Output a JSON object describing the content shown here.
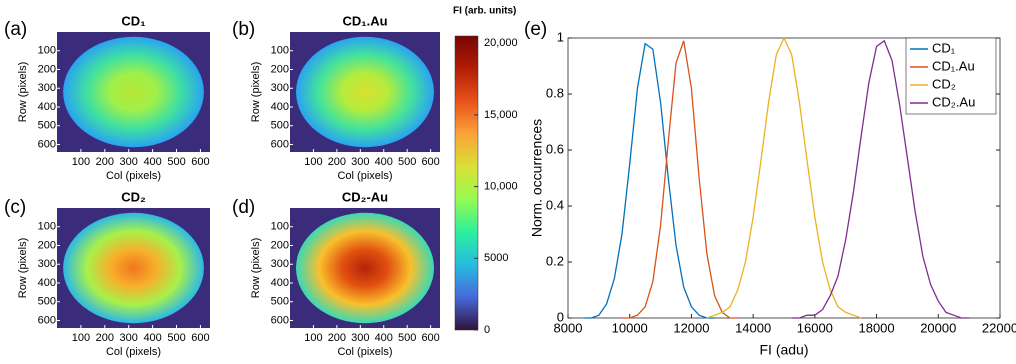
{
  "chart_data": [
    {
      "type": "image",
      "label": "(a)",
      "title": "CD₁",
      "xlabel": "Col (pixels)",
      "ylabel": "Row (pixels)",
      "xlim": [
        0,
        640
      ],
      "xticks": [
        100,
        200,
        300,
        400,
        500,
        600
      ],
      "ylim": [
        0,
        640
      ],
      "yticks": [
        100,
        200,
        300,
        400,
        500,
        600
      ],
      "colors": [
        "#b6e635",
        "#9ff04a",
        "#3fe0a2",
        "#29a3f2",
        "#3a2c7a"
      ]
    },
    {
      "type": "image",
      "label": "(b)",
      "title": "CD₁.Au",
      "xlabel": "Col (pixels)",
      "ylabel": "Row (pixels)",
      "xlim": [
        0,
        640
      ],
      "xticks": [
        100,
        200,
        300,
        400,
        500,
        600
      ],
      "ylim": [
        0,
        640
      ],
      "yticks": [
        100,
        200,
        300,
        400,
        500,
        600
      ],
      "colors": [
        "#d8e030",
        "#b4ec3c",
        "#45e39a",
        "#29a3f2",
        "#3a2c7a"
      ]
    },
    {
      "type": "image",
      "label": "(c)",
      "title": "CD₂",
      "xlabel": "Col (pixels)",
      "ylabel": "Row (pixels)",
      "xlim": [
        0,
        640
      ],
      "xticks": [
        100,
        200,
        300,
        400,
        500,
        600
      ],
      "ylim": [
        0,
        640
      ],
      "yticks": [
        100,
        200,
        300,
        400,
        500,
        600
      ],
      "colors": [
        "#f1761c",
        "#f7b02c",
        "#a8f04a",
        "#2cb9e6",
        "#3a2c7a"
      ]
    },
    {
      "type": "image",
      "label": "(d)",
      "title": "CD₂-Au",
      "xlabel": "Col (pixels)",
      "ylabel": "Row (pixels)",
      "xlim": [
        0,
        640
      ],
      "xticks": [
        100,
        200,
        300,
        400,
        500,
        600
      ],
      "ylim": [
        0,
        640
      ],
      "yticks": [
        100,
        200,
        300,
        400,
        500,
        600
      ],
      "colors": [
        "#b3230a",
        "#e2500f",
        "#f9c02d",
        "#3ad9b4",
        "#3a2c7a"
      ]
    },
    {
      "type": "colorbar",
      "title": "FI (arb. units)",
      "ylim": [
        0,
        20500
      ],
      "yticks": [
        0,
        5000,
        {
          "value": 10000,
          "label": "10,000"
        },
        {
          "value": 15000,
          "label": "15,000"
        },
        {
          "value": 20000,
          "label": "20,000"
        }
      ],
      "colors": [
        "#30123b",
        "#4669db",
        "#26bce1",
        "#2cf09c",
        "#95fb51",
        "#dae035",
        "#fba33a",
        "#e9531a",
        "#b11e04",
        "#7a0403"
      ]
    },
    {
      "type": "line",
      "label": "(e)",
      "xlabel": "FI (adu)",
      "ylabel": "Norm. occurrences",
      "xlim": [
        8000,
        22000
      ],
      "xticks": [
        8000,
        10000,
        12000,
        14000,
        16000,
        18000,
        20000,
        22000
      ],
      "ylim": [
        0,
        1
      ],
      "yticks": [
        0,
        0.2,
        0.4,
        0.6,
        0.8,
        1
      ],
      "legend": "upper right",
      "x": [
        8000,
        8250,
        8500,
        8750,
        9000,
        9250,
        9500,
        9750,
        10000,
        10250,
        10500,
        10750,
        11000,
        11250,
        11500,
        11750,
        12000,
        12250,
        12500,
        12750,
        13000,
        13250,
        13500,
        13750,
        14000,
        14250,
        14500,
        14750,
        15000,
        15250,
        15500,
        15750,
        16000,
        16250,
        16500,
        16750,
        17000,
        17250,
        17500,
        17750,
        18000,
        18250,
        18500,
        18750,
        19000,
        19250,
        19500,
        19750,
        20000,
        20250,
        20500,
        20750,
        21000
      ],
      "series": [
        {
          "name": "CD₁",
          "color": "#0072bd",
          "values": [
            null,
            null,
            0,
            0,
            0.01,
            0.05,
            0.14,
            0.3,
            0.55,
            0.82,
            0.98,
            0.96,
            0.77,
            0.5,
            0.26,
            0.11,
            0.04,
            0.01,
            0,
            0,
            null,
            null,
            null,
            null,
            null,
            null,
            null,
            null,
            null,
            null,
            null,
            null,
            null,
            null,
            null,
            null,
            null,
            null,
            null,
            null,
            null,
            null,
            null,
            null,
            null,
            null,
            null,
            null,
            null,
            null,
            null,
            null,
            null
          ]
        },
        {
          "name": "CD₁.Au",
          "color": "#d95319",
          "values": [
            null,
            null,
            null,
            null,
            null,
            null,
            null,
            0,
            0,
            0.01,
            0.04,
            0.13,
            0.33,
            0.63,
            0.91,
            0.99,
            0.82,
            0.5,
            0.23,
            0.08,
            0.02,
            0,
            0,
            null,
            null,
            null,
            null,
            null,
            null,
            null,
            null,
            null,
            null,
            null,
            null,
            null,
            null,
            null,
            null,
            null,
            null,
            null,
            null,
            null,
            null,
            null,
            null,
            null,
            null,
            null,
            null,
            null,
            null
          ]
        },
        {
          "name": "CD₂",
          "color": "#edb120",
          "values": [
            null,
            null,
            null,
            null,
            null,
            null,
            null,
            null,
            null,
            null,
            null,
            null,
            null,
            null,
            null,
            null,
            null,
            null,
            0,
            0.01,
            0.02,
            0.04,
            0.1,
            0.2,
            0.36,
            0.56,
            0.77,
            0.94,
            1.0,
            0.94,
            0.77,
            0.56,
            0.36,
            0.2,
            0.1,
            0.04,
            0.02,
            0.01,
            0,
            null,
            null,
            null,
            null,
            null,
            null,
            null,
            null,
            null,
            null,
            null,
            null,
            null,
            null
          ]
        },
        {
          "name": "CD₂.Au",
          "color": "#7e2f8e",
          "values": [
            null,
            null,
            null,
            null,
            null,
            null,
            null,
            null,
            null,
            null,
            null,
            null,
            null,
            null,
            null,
            null,
            null,
            null,
            null,
            null,
            null,
            null,
            null,
            null,
            null,
            null,
            null,
            null,
            null,
            0,
            0,
            0.01,
            0.01,
            0.03,
            0.08,
            0.15,
            0.28,
            0.45,
            0.65,
            0.84,
            0.97,
            0.99,
            0.92,
            0.76,
            0.57,
            0.38,
            0.22,
            0.12,
            0.06,
            0.02,
            0.01,
            0,
            0
          ]
        }
      ]
    }
  ]
}
